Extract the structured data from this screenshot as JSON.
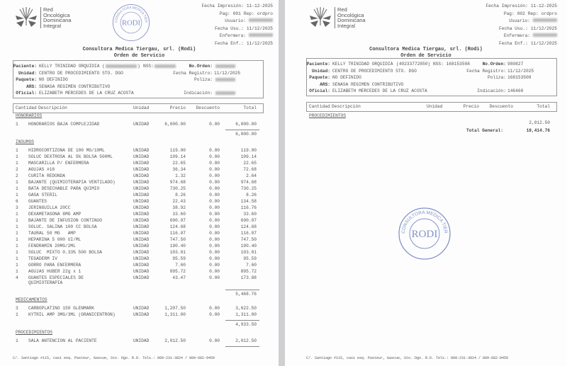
{
  "logo_text": [
    "Red",
    "Oncológica",
    "Dominicana",
    "Integral"
  ],
  "company": "Consultora Medica Tiergau, srl. (Rodi)",
  "doc_title": "Orden de Servicio",
  "stamp": {
    "center": "RODI",
    "ring": "CONSULTORA MEDICA TIERGAU S.R.L."
  },
  "footer": "C/. Santiago #115, casi esq. Pasteur, Gascue, Sto. Dgo. R.D. Tels.: 809-231-3824 / 809-682-9459",
  "labels": {
    "impresion": "Fecha Impresión:",
    "pag": "Pag:",
    "rep": "Rep:",
    "usuario": "Usuario:",
    "fecha_usu": "Fecha Usu.:",
    "enfermera": "Enfermera:",
    "fecha_enf": "Fecha Enf.:",
    "paciente": "Paciente:",
    "nss": "NSS:",
    "unidad": "Unidad:",
    "paquete": "Paquete:",
    "ars": "ARS:",
    "oficial": "Oficial:",
    "no_orden": "No.Orden:",
    "fecha_registro": "Fecha Registro:",
    "poliza": "Poliza:",
    "indicacion": "Indicación:"
  },
  "columns": [
    "Cantidad",
    "Descripción",
    "Unidad",
    "Precio",
    "Descuento",
    "Total"
  ],
  "pages": [
    {
      "fecha_impresion": "11-12-2025",
      "pag": "001",
      "rep": "ordpro",
      "fecha_usu": "11/12/2025",
      "fecha_enf": "11/12/2025",
      "paciente": "KELLY TRINIDAD ORQUIDIA",
      "unidad": "CENTRO DE PROCEDIMIENTO STO. DGO",
      "paquete": "NO DEFINIDO",
      "ars": "SENASA REGIMEN CONTRIBUTIVO",
      "oficial": "ELIZABETH MERCEDES DE LA CRUZ ACOSTA",
      "fecha_registro": "11/12/2025"
    },
    {
      "fecha_impresion": "11-12-2025",
      "pag": "002",
      "rep": "ordpro",
      "fecha_usu": "11/12/2025",
      "fecha_enf": "11/12/2025",
      "paciente": "KELLY TRINIDAD ORQUIDIA",
      "cedula": "(40233772850)",
      "nss": "168153508",
      "unidad": "CENTRO DE PROCEDIMIENTO STO. DGO",
      "paquete": "NO DEFINIDO",
      "ars": "SENASA REGIMEN CONTRIBUTIVO",
      "oficial": "ELIZABETH MERCEDES DE LA CRUZ ACOSTA",
      "no_orden": "980827",
      "fecha_registro": "11/12/2025",
      "poliza": "168153508",
      "indicacion": "146460",
      "section": "PROCEDIMIENTOS",
      "carry": "2,012.50",
      "total_label": "Total General:",
      "total": "18,414.76"
    }
  ],
  "sections": [
    {
      "name": "HONORARIOS",
      "subtotal": "6,000.00",
      "items": [
        [
          "1",
          "HONORARIOS BAJA COMPLEJIDAD",
          "UNIDAD",
          "6,000.00",
          "0.00",
          "6,000.00"
        ]
      ]
    },
    {
      "name": "INSUMOS",
      "subtotal": "5,468.76",
      "items": [
        [
          "1",
          "HIDROCORTIZONA DE 100 MG/10ML",
          "UNIDAD",
          "119.00",
          "0.00",
          "119.00"
        ],
        [
          "1",
          "SOLUC DEXTROSA AL 5% BOLSA 500ML",
          "UNIDAD",
          "109.14",
          "0.00",
          "109.14"
        ],
        [
          "1",
          "MASCARILLA P/ ENFERMERA",
          "UNIDAD",
          "22.65",
          "0.00",
          "22.65"
        ],
        [
          "2",
          "AGUJAS #18",
          "UNIDAD",
          "36.34",
          "0.00",
          "72.68"
        ],
        [
          "2",
          "CURITA REDONDA",
          "UNIDAD",
          "1.32",
          "0.00",
          "2.64"
        ],
        [
          "1",
          "BAJANTE (QUIMIOTERAPIA VENTILADO)",
          "UNIDAD",
          "974.68",
          "0.00",
          "974.68"
        ],
        [
          "1",
          "BATA DESECHABLE PARA QUIMIO",
          "UNIDAD",
          "730.25",
          "0.00",
          "730.25"
        ],
        [
          "1",
          "GASA STERIL",
          "UNIDAD",
          "8.26",
          "0.00",
          "8.26"
        ],
        [
          "6",
          "GUANTES",
          "UNIDAD",
          "22.43",
          "0.00",
          "134.58"
        ],
        [
          "3",
          "JERINGUILLA 20CC",
          "UNIDAD",
          "38.92",
          "0.00",
          "116.76"
        ],
        [
          "1",
          "DEXAMETASONA 8MG AMP",
          "UNIDAD",
          "33.60",
          "0.00",
          "33.60"
        ],
        [
          "1",
          "BAJANTE DE INFUSION CONTINUO",
          "UNIDAD",
          "690.07",
          "0.00",
          "690.07"
        ],
        [
          "1",
          "SOLUC. SALINA 100 CC BOLSA",
          "UNIDAD",
          "124.68",
          "0.00",
          "124.68"
        ],
        [
          "1",
          "TAURAL 50 MG   AMP",
          "UNIDAD",
          "116.07",
          "0.00",
          "116.07"
        ],
        [
          "1",
          "HEPARINA 5 000 UI/ML",
          "UNIDAD",
          "747.50",
          "0.00",
          "747.50"
        ],
        [
          "1",
          "FENDRAMIN 20MG/2ML",
          "UNIDAD",
          "190.40",
          "0.00",
          "190.40"
        ],
        [
          "1",
          "SOLUC  MIXTO 0.33% 500 BOLSA",
          "UNIDAD",
          "103.01",
          "0.00",
          "103.01"
        ],
        [
          "1",
          "TEGADERM IV",
          "UNIDAD",
          "95.59",
          "0.00",
          "95.59"
        ],
        [
          "1",
          "GORRO PARA ENFERMERA",
          "UNIDAD",
          "7.60",
          "0.00",
          "7.60"
        ],
        [
          "1",
          "AGUJAS HUBER 22g x 1",
          "UNIDAD",
          "895.72",
          "0.00",
          "895.72"
        ],
        [
          "4",
          "GUANTES ESPECIALES DE\nQUIMIOTERAPIA",
          "UNIDAD",
          "43.47",
          "0.00",
          "173.88"
        ]
      ]
    },
    {
      "name": "MEDICAMENTOS",
      "subtotal": "4,933.50",
      "items": [
        [
          "3",
          "CARBOPLATINO 150 GLENMARK",
          "UNIDAD",
          "1,207.50",
          "0.00",
          "3,622.50"
        ],
        [
          "1",
          "KYTRIL AMP 3MG/3ML (GRANICENTRON)",
          "UNIDAD",
          "1,311.00",
          "0.00",
          "1,311.00"
        ]
      ]
    },
    {
      "name": "PROCEDIMIENTOS",
      "subtotal": "",
      "items": [
        [
          "1",
          "SALA ANTENCION AL PACIENTE",
          "UNIDAD",
          "2,012.50",
          "0.00",
          "2,012.50"
        ]
      ]
    }
  ]
}
